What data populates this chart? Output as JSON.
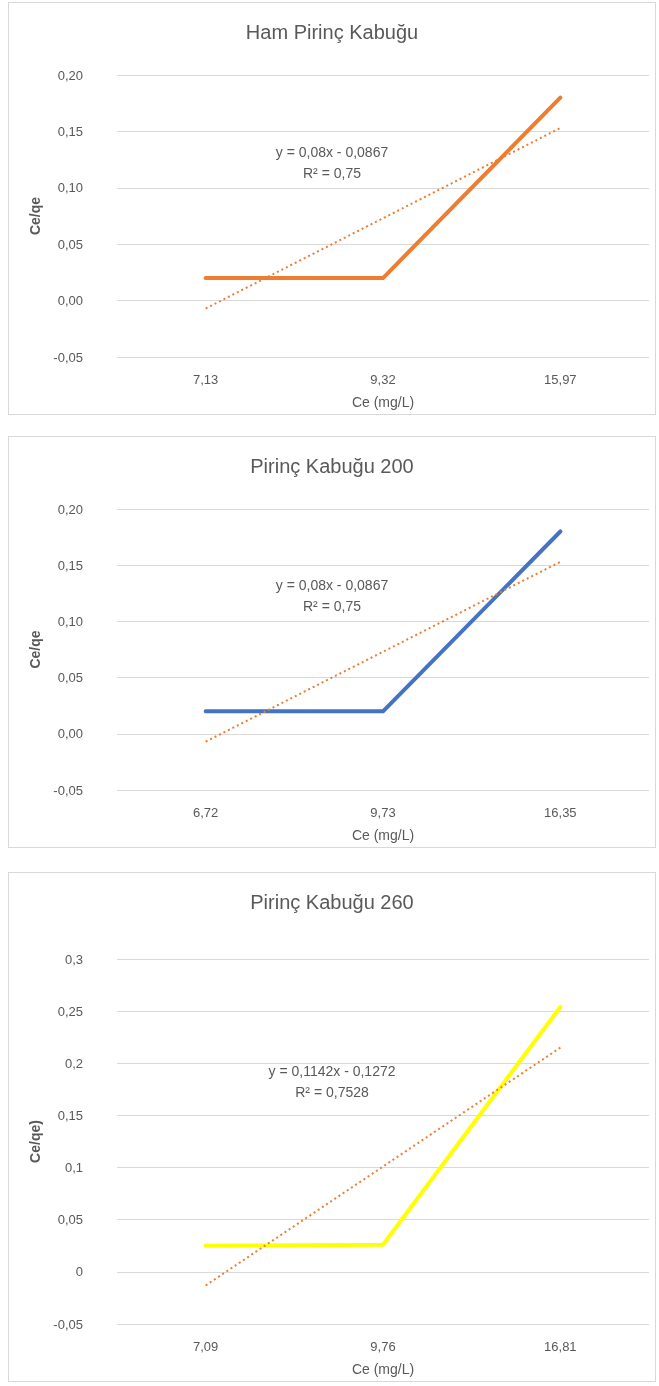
{
  "chart_data": [
    {
      "type": "line",
      "title": "Ham Pirinç Kabuğu",
      "xlabel": "Ce (mg/L)",
      "ylabel": "Ce/qe",
      "categories": [
        "7,13",
        "9,32",
        "15,97"
      ],
      "series": [
        {
          "color": "#ed7d31",
          "values": [
            0.02,
            0.02,
            0.18
          ]
        },
        {
          "color": "#ed7d31",
          "values": [
            -0.007,
            0.073,
            0.153
          ],
          "line_style": "dotted"
        }
      ],
      "ylim": [
        -0.05,
        0.2
      ],
      "yticks": [
        {
          "value": -0.05,
          "label": "-0,05"
        },
        {
          "value": 0,
          "label": "0,00"
        },
        {
          "value": 0.05,
          "label": "0,05"
        },
        {
          "value": 0.1,
          "label": "0,10"
        },
        {
          "value": 0.15,
          "label": "0,15"
        },
        {
          "value": 0.2,
          "label": "0,20"
        }
      ],
      "grid": "y",
      "marker": "none",
      "annotations": [
        "y = 0,08x - 0,0867",
        "R² = 0,75"
      ]
    },
    {
      "type": "line",
      "title": "Pirinç Kabuğu 200",
      "xlabel": "Ce (mg/L)",
      "ylabel": "Ce/qe",
      "categories": [
        "6,72",
        "9,73",
        "16,35"
      ],
      "series": [
        {
          "color": "#4472c4",
          "values": [
            0.02,
            0.02,
            0.18
          ]
        },
        {
          "color": "#ed7d31",
          "values": [
            -0.007,
            0.073,
            0.153
          ],
          "line_style": "dotted"
        }
      ],
      "ylim": [
        -0.05,
        0.2
      ],
      "yticks": [
        {
          "value": -0.05,
          "label": "-0,05"
        },
        {
          "value": 0,
          "label": "0,00"
        },
        {
          "value": 0.05,
          "label": "0,05"
        },
        {
          "value": 0.1,
          "label": "0,10"
        },
        {
          "value": 0.15,
          "label": "0,15"
        },
        {
          "value": 0.2,
          "label": "0,20"
        }
      ],
      "grid": "y",
      "marker": "none",
      "annotations": [
        "y = 0,08x - 0,0867",
        "R² = 0,75"
      ]
    },
    {
      "type": "line",
      "title": "Pirinç Kabuğu 260",
      "xlabel": "Ce (mg/L)",
      "ylabel": "Ce/qe)",
      "categories": [
        "7,09",
        "9,76",
        "16,81"
      ],
      "series": [
        {
          "color": "#ffff00",
          "values": [
            0.025,
            0.026,
            0.254
          ]
        },
        {
          "color": "#ed7d31",
          "values": [
            -0.013,
            0.101,
            0.215
          ],
          "line_style": "dotted"
        }
      ],
      "ylim": [
        -0.05,
        0.3
      ],
      "yticks": [
        {
          "value": -0.05,
          "label": "-0,05"
        },
        0,
        {
          "value": 0.05,
          "label": "0,05"
        },
        {
          "value": 0.1,
          "label": "0,1"
        },
        {
          "value": 0.15,
          "label": "0,15"
        },
        {
          "value": 0.2,
          "label": "0,2"
        },
        {
          "value": 0.25,
          "label": "0,25"
        },
        {
          "value": 0.3,
          "label": "0,3"
        }
      ],
      "grid": "y",
      "marker": "none",
      "annotations": [
        "y = 0,1142x - 0,1272",
        "R² = 0,7528"
      ]
    }
  ]
}
